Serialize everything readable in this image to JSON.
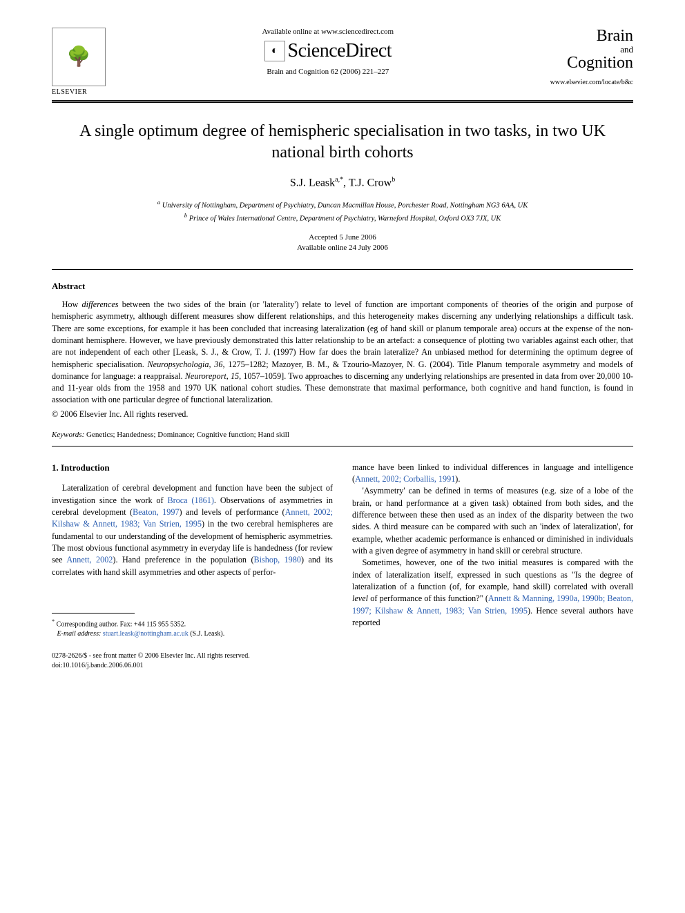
{
  "header": {
    "availableOnline": "Available online at www.sciencedirect.com",
    "scienceDirect": "ScienceDirect",
    "journalRef": "Brain and Cognition 62 (2006) 221–227",
    "elsevierLabel": "ELSEVIER",
    "journalLogo": {
      "line1": "Brain",
      "and": "and",
      "line2": "Cognition"
    },
    "locateUrl": "www.elsevier.com/locate/b&c"
  },
  "title": "A single optimum degree of hemispheric specialisation in two tasks, in two UK national birth cohorts",
  "authors": {
    "a1_name": "S.J. Leask",
    "a1_sup": "a,*",
    "a2_name": "T.J. Crow",
    "a2_sup": "b"
  },
  "affiliations": {
    "a": "University of Nottingham, Department of Psychiatry, Duncan Macmillan House, Porchester Road, Nottingham NG3 6AA, UK",
    "b": "Prince of Wales International Centre, Department of Psychiatry, Warneford Hospital, Oxford OX3 7JX, UK"
  },
  "dates": {
    "accepted": "Accepted 5 June 2006",
    "online": "Available online 24 July 2006"
  },
  "abstract": {
    "heading": "Abstract",
    "pre": "How ",
    "emph": "differences",
    "post": " between the two sides of the brain (or 'laterality') relate to level of function are important components of theories of the origin and purpose of hemispheric asymmetry, although different measures show different relationships, and this heterogeneity makes discerning any underlying relationships a difficult task. There are some exceptions, for example it has been concluded that increasing lateralization (eg of hand skill or planum temporale area) occurs at the expense of the non-dominant hemisphere. However, we have previously demonstrated this latter relationship to be an artefact: a consequence of plotting two variables against each other, that are not independent of each other [Leask, S. J., & Crow, T. J. (1997) How far does the brain lateralize? An unbiased method for determining the optimum degree of hemispheric specialisation. ",
    "j1": "Neuropsychologia, 36",
    "mid": ", 1275–1282; Mazoyer, B. M., & Tzourio-Mazoyer, N. G. (2004). Title Planum temporale asymmetry and models of dominance for language: a reappraisal. ",
    "j2": "Neuroreport, 15",
    "tail": ", 1057–1059]. Two approaches to discerning any underlying relationships are presented in data from over 20,000 10- and 11-year olds from the 1958 and 1970 UK national cohort studies. These demonstrate that maximal performance, both cognitive and hand function, is found in association with one particular degree of functional lateralization.",
    "copyright": "© 2006 Elsevier Inc. All rights reserved."
  },
  "keywords": {
    "label": "Keywords:",
    "text": "Genetics; Handedness; Dominance; Cognitive function; Hand skill"
  },
  "intro": {
    "heading": "1. Introduction",
    "l1_a": "Lateralization of cerebral development and function have been the subject of investigation since the work of ",
    "l1_link1": "Broca (1861)",
    "l1_b": ". Observations of asymmetries in cerebral development (",
    "l1_link2": "Beaton, 1997",
    "l1_c": ") and levels of performance (",
    "l1_link3": "Annett, 2002; Kilshaw & Annett, 1983; Van Strien, 1995",
    "l1_d": ") in the two cerebral hemispheres are fundamental to our understanding of the development of hemispheric asymmetries. The most obvious functional asymmetry in everyday life is handedness (for review see ",
    "l1_link4": "Annett, 2002",
    "l1_e": "). Hand preference in the population (",
    "l1_link5": "Bishop, 1980",
    "l1_f": ") and its correlates with hand skill asymmetries and other aspects of perfor-",
    "r1_a": "mance have been linked to individual differences in language and intelligence (",
    "r1_link1": "Annett, 2002; Corballis, 1991",
    "r1_b": ").",
    "r2": "'Asymmetry' can be defined in terms of measures (e.g. size of a lobe of the brain, or hand performance at a given task) obtained from both sides, and the difference between these then used as an index of the disparity between the two sides. A third measure can be compared with such an 'index of lateralization', for example, whether academic performance is enhanced or diminished in individuals with a given degree of asymmetry in hand skill or cerebral structure.",
    "r3_a": "Sometimes, however, one of the two initial measures is compared with the index of lateralization itself, expressed in such questions as \"Is the degree of lateralization of a function (of, for example, hand skill) correlated with overall ",
    "r3_em": "level",
    "r3_b": " of performance of this function?\" (",
    "r3_link1": "Annett & Manning, 1990a, 1990b; Beaton, 1997; Kilshaw & Annett, 1983; Van Strien, 1995",
    "r3_c": "). Hence several authors have reported"
  },
  "footnote": {
    "corr": "Corresponding author. Fax: +44 115 955 5352.",
    "emailLabel": "E-mail address:",
    "email": "stuart.leask@nottingham.ac.uk",
    "emailTail": "(S.J. Leask)."
  },
  "footer": {
    "line1": "0278-2626/$ - see front matter © 2006 Elsevier Inc. All rights reserved.",
    "line2": "doi:10.1016/j.bandc.2006.06.001"
  },
  "colors": {
    "link": "#2a5db0",
    "text": "#000000",
    "background": "#ffffff"
  }
}
